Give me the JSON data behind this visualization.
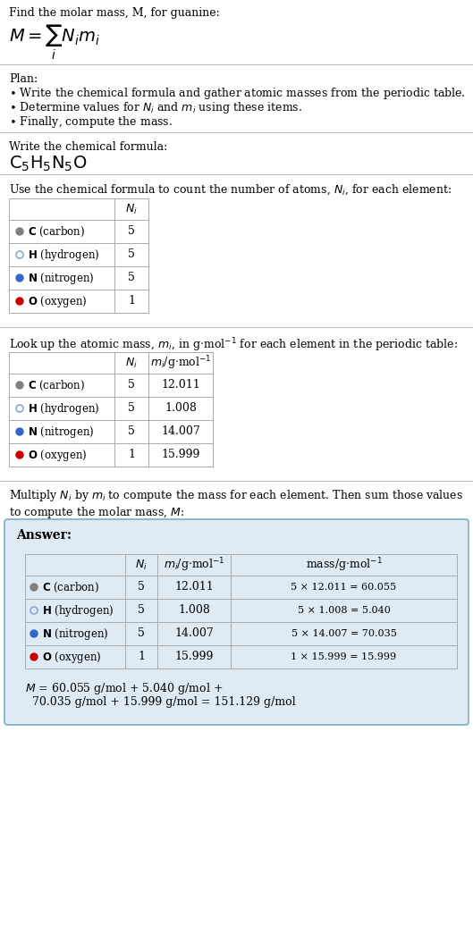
{
  "title_text": "Find the molar mass, M, for guanine:",
  "elements": [
    "C (carbon)",
    "H (hydrogen)",
    "N (nitrogen)",
    "O (oxygen)"
  ],
  "element_symbols": [
    "C",
    "H",
    "N",
    "O"
  ],
  "element_colors": [
    "#808080",
    "#ffffff",
    "#3366cc",
    "#cc0000"
  ],
  "element_border_colors": [
    "#808080",
    "#88aacc",
    "#3366cc",
    "#cc0000"
  ],
  "Ni": [
    5,
    5,
    5,
    1
  ],
  "mi": [
    "12.011",
    "1.008",
    "14.007",
    "15.999"
  ],
  "mass_expr": [
    "5 × 12.011 = 60.055",
    "5 × 1.008 = 5.040",
    "5 × 14.007 = 70.035",
    "1 × 15.999 = 15.999"
  ],
  "answer_bg": "#deeaf4",
  "answer_border": "#7aafc0",
  "table_border": "#aaaaaa",
  "bg_color": "#ffffff",
  "text_color": "#000000",
  "font_size": 9.0,
  "small_font": 8.5
}
